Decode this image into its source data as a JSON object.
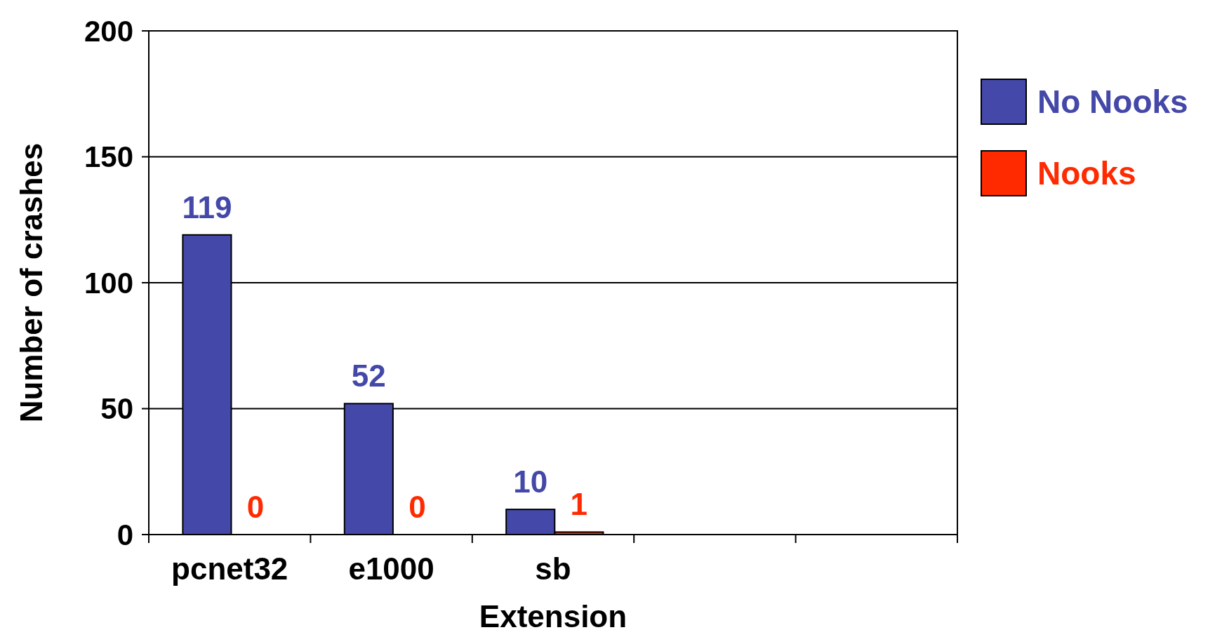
{
  "chart_data": {
    "type": "bar",
    "xlabel": "Extension",
    "ylabel": "Number of crashes",
    "categories": [
      "pcnet32",
      "e1000",
      "sb",
      null,
      null
    ],
    "series": [
      {
        "name": "No Nooks",
        "color": "#4448a8",
        "values": [
          119,
          52,
          10,
          null,
          null
        ]
      },
      {
        "name": "Nooks",
        "color": "#ff2a00",
        "values": [
          0,
          0,
          1,
          null,
          null
        ]
      }
    ],
    "ylim": [
      0,
      200
    ],
    "yticks": [
      0,
      50,
      100,
      150,
      200
    ],
    "grid": "y",
    "legend": "right",
    "data_labels": true
  }
}
